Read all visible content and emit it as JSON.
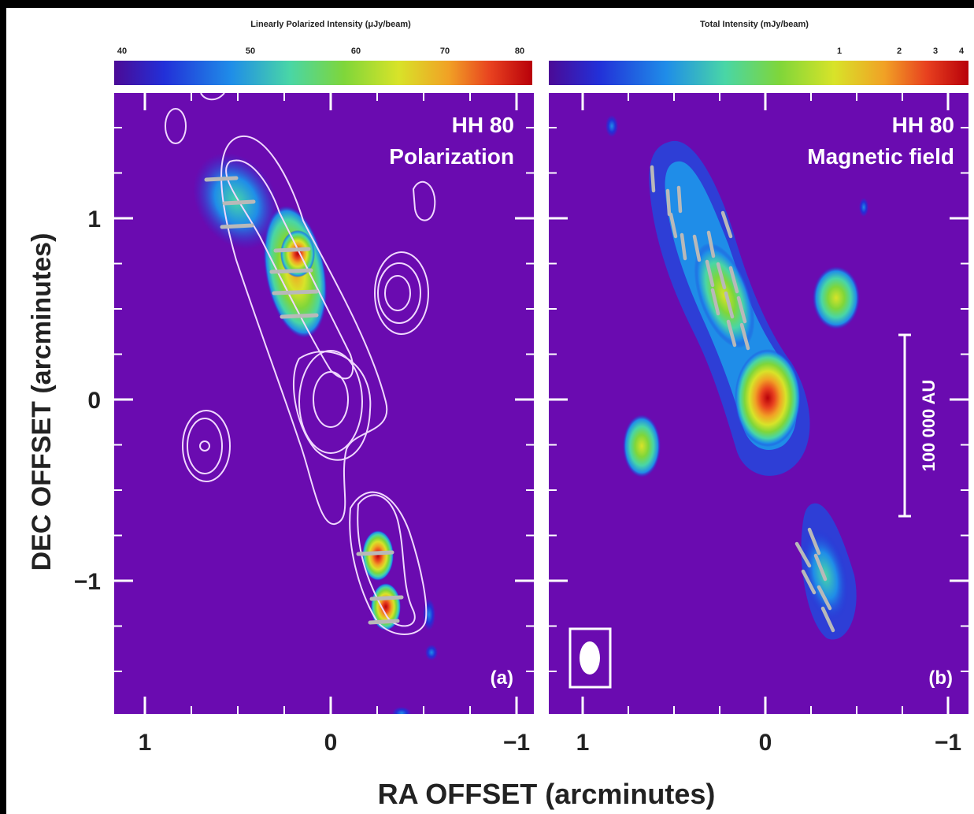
{
  "chart_data": [
    {
      "type": "heatmap",
      "panel_label": "(a)",
      "annotation": [
        "HH 80",
        "Polarization"
      ],
      "colorbar": {
        "title": "Linearly Polarized Intensity (μJy/beam)",
        "ticks": [
          "40",
          "50",
          "60",
          "70",
          "80"
        ],
        "tick_values": [
          40,
          50,
          60,
          70,
          80
        ],
        "range": [
          40,
          80
        ],
        "colormap": [
          "#4b0a96",
          "#2230d8",
          "#1f8de8",
          "#49d6a6",
          "#7fd63a",
          "#d8e329",
          "#f1a125",
          "#e8411f",
          "#b8000a"
        ]
      },
      "xlabel": "RA OFFSET (arcminutes)",
      "ylabel": "DEC OFFSET (arcminutes)",
      "x_ticks": [
        "1",
        "0",
        "−1"
      ],
      "x_tick_values": [
        1,
        0,
        -1
      ],
      "y_ticks": [
        "1",
        "0",
        "−1"
      ],
      "y_tick_values": [
        1,
        0,
        -1
      ],
      "xlim": [
        1.25,
        -1.1
      ],
      "ylim": [
        -1.75,
        1.7
      ],
      "background_color": "#6a0bb0",
      "emission_peaks": [
        {
          "ra": 0.68,
          "dec": 1.2,
          "value": 52
        },
        {
          "ra": 0.55,
          "dec": 1.05,
          "value": 56
        },
        {
          "ra": 0.5,
          "dec": 0.95,
          "value": 55
        },
        {
          "ra": 0.2,
          "dec": 0.8,
          "value": 78
        },
        {
          "ra": 0.2,
          "dec": 0.55,
          "value": 66
        },
        {
          "ra": 0.22,
          "dec": 0.4,
          "value": 58
        },
        {
          "ra": -0.25,
          "dec": -0.82,
          "value": 78
        },
        {
          "ra": -0.3,
          "dec": -1.15,
          "value": 72
        }
      ],
      "contour_sources": [
        {
          "ra": 0.0,
          "dec": 0.0
        },
        {
          "ra": -0.38,
          "dec": 0.58
        },
        {
          "ra": 0.72,
          "dec": -0.25
        },
        {
          "ra": 0.87,
          "dec": 1.5
        },
        {
          "ra": -0.52,
          "dec": 1.12
        }
      ]
    },
    {
      "type": "heatmap",
      "panel_label": "(b)",
      "annotation": [
        "HH 80",
        "Magnetic field"
      ],
      "colorbar": {
        "title": "Total Intensity (mJy/beam)",
        "ticks": [
          "1",
          "2",
          "3",
          "4"
        ],
        "tick_values": [
          1,
          2,
          3,
          4
        ],
        "colormap": [
          "#4b0a96",
          "#2230d8",
          "#1f8de8",
          "#49d6a6",
          "#7fd63a",
          "#d8e329",
          "#f1a125",
          "#e8411f",
          "#b8000a"
        ]
      },
      "scale_bar_label": "100 000 AU",
      "x_ticks": [
        "1",
        "0",
        "−1"
      ],
      "x_tick_values": [
        1,
        0,
        -1
      ],
      "y_ticks": [
        "1",
        "0",
        "−1"
      ],
      "y_tick_values": [
        1,
        0,
        -1
      ],
      "xlim": [
        1.25,
        -1.1
      ],
      "ylim": [
        -1.75,
        1.7
      ],
      "background_color": "#6a0bb0",
      "emission_peaks": [
        {
          "ra": 0.0,
          "dec": 0.02,
          "value": 4
        },
        {
          "ra": -0.38,
          "dec": 0.57,
          "value": 1.0
        },
        {
          "ra": 0.7,
          "dec": -0.24,
          "value": 0.8
        },
        {
          "ra": -0.33,
          "dec": -0.95,
          "value": 0.6
        },
        {
          "ra": 0.25,
          "dec": 0.62,
          "value": 0.55
        }
      ]
    }
  ]
}
